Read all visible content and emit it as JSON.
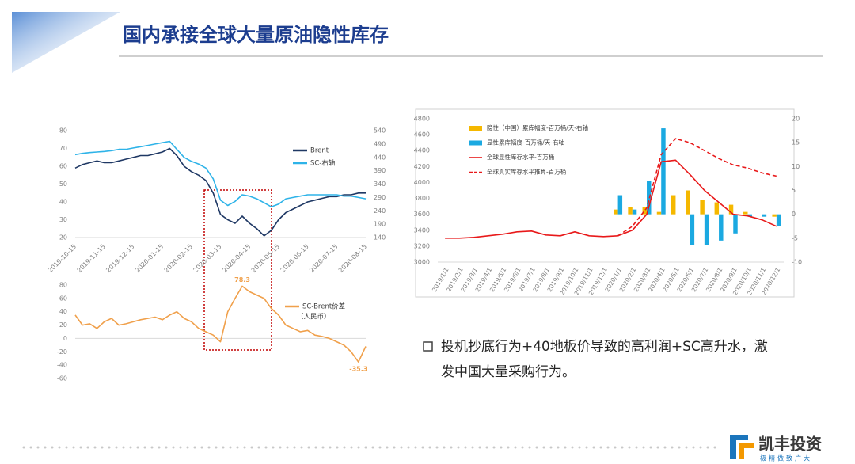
{
  "title": "国内承接全球大量原油隐性库存",
  "bullet": [
    "投机抄底行为+40地板价导致的高利润+SC高升水，激",
    "发中国大量采购行为。"
  ],
  "logo": {
    "name": "凯丰投资",
    "slogan": "极精做致广大"
  },
  "chart_data": [
    {
      "type": "line",
      "x": [
        "2019-10-15",
        null,
        null,
        null,
        "2019-11-15",
        null,
        null,
        null,
        "2019-12-15",
        null,
        null,
        null,
        "2020-01-15",
        null,
        null,
        null,
        "2020-02-15",
        null,
        null,
        null,
        "2020-03-15",
        null,
        null,
        null,
        "2020-04-15",
        null,
        null,
        null,
        "2020-05-15",
        null,
        null,
        null,
        "2020-06-15",
        null,
        null,
        null,
        "2020-07-15",
        null,
        null,
        null,
        "2020-08-15"
      ],
      "ylim": [
        20,
        80
      ],
      "yticks": [
        20,
        30,
        40,
        50,
        60,
        70,
        80
      ],
      "y2lim": [
        140,
        540
      ],
      "y2ticks": [
        140,
        190,
        240,
        290,
        340,
        390,
        440,
        490,
        540
      ],
      "series": [
        {
          "name": "Brent",
          "color": "#1f3864",
          "values": [
            59,
            61,
            62,
            63,
            62,
            62,
            63,
            64,
            65,
            66,
            66,
            67,
            68,
            70,
            66,
            60,
            57,
            55,
            52,
            45,
            33,
            30,
            28,
            32,
            28,
            25,
            21,
            24,
            30,
            34,
            36,
            38,
            40,
            41,
            42,
            43,
            43,
            44,
            44,
            45,
            45
          ]
        },
        {
          "name": "SC-右轴",
          "color": "#2eb3e8",
          "axis": "y2",
          "values": [
            450,
            455,
            458,
            460,
            462,
            465,
            470,
            470,
            475,
            480,
            485,
            490,
            495,
            500,
            470,
            440,
            425,
            415,
            400,
            360,
            280,
            260,
            275,
            300,
            295,
            285,
            270,
            255,
            265,
            285,
            290,
            295,
            300,
            300,
            300,
            300,
            300,
            295,
            295,
            290,
            285
          ]
        }
      ]
    },
    {
      "type": "line",
      "ylim": [
        -60,
        80
      ],
      "yticks": [
        -60,
        -40,
        -20,
        0,
        20,
        40,
        60,
        80
      ],
      "annotation": "（人民币）",
      "series": [
        {
          "name": "SC-Brent价差",
          "color": "#f0a04b",
          "values": [
            35,
            20,
            22,
            15,
            25,
            30,
            20,
            22,
            25,
            28,
            30,
            32,
            28,
            35,
            40,
            30,
            25,
            15,
            10,
            5,
            -5,
            40,
            60,
            78.3,
            70,
            65,
            60,
            45,
            35,
            20,
            15,
            10,
            12,
            5,
            3,
            0,
            -5,
            -10,
            -20,
            -35.3,
            -12
          ],
          "value_labels": [
            null,
            null,
            null,
            null,
            null,
            null,
            null,
            null,
            null,
            null,
            null,
            null,
            null,
            null,
            null,
            null,
            null,
            null,
            null,
            null,
            null,
            null,
            null,
            "78.3",
            null,
            null,
            null,
            null,
            null,
            null,
            null,
            null,
            null,
            null,
            null,
            null,
            null,
            null,
            null,
            "-35.3",
            null
          ]
        }
      ]
    },
    {
      "type": "combo",
      "categories": [
        "2019/1/1",
        "2019/2/1",
        "2019/3/1",
        "2019/4/1",
        "2019/5/1",
        "2019/6/1",
        "2019/7/1",
        "2019/8/1",
        "2019/9/1",
        "2019/10/1",
        "2019/11/1",
        "2019/12/1",
        "2020/1/1",
        "2020/2/1",
        "2020/3/1",
        "2020/4/1",
        "2020/5/1",
        "2020/6/1",
        "2020/7/1",
        "2020/8/1",
        "2020/9/1",
        "2020/10/1",
        "2020/11/1",
        "2020/12/1"
      ],
      "ylim": [
        3000,
        4800
      ],
      "yticks": [
        3000,
        3200,
        3400,
        3600,
        3800,
        4000,
        4200,
        4400,
        4600,
        4800
      ],
      "y2lim": [
        -10,
        20
      ],
      "y2ticks": [
        -10,
        -5,
        0,
        5,
        10,
        15,
        20
      ],
      "series": [
        {
          "name": "隐性（中国）累库幅度-百万桶/天-右轴",
          "type": "bar",
          "axis": "y2",
          "color": "#f5b800",
          "values": [
            null,
            null,
            null,
            null,
            null,
            null,
            null,
            null,
            null,
            null,
            null,
            null,
            1,
            1.5,
            1.5,
            0.5,
            4,
            5,
            3,
            2.5,
            2,
            0.5,
            0,
            -0.5
          ]
        },
        {
          "name": "显性累库幅度-百万桶/天-右轴",
          "type": "bar",
          "axis": "y2",
          "color": "#1ba9e1",
          "values": [
            null,
            null,
            null,
            null,
            null,
            null,
            null,
            null,
            null,
            null,
            null,
            null,
            4,
            1,
            7,
            18,
            0,
            -6.5,
            -6.5,
            -5.5,
            -4,
            -0.5,
            -0.5,
            -2.5
          ]
        },
        {
          "name": "全球显性库存水平-百万桶",
          "type": "line",
          "color": "#e8191a",
          "dash": false,
          "values": [
            3300,
            3300,
            3310,
            3330,
            3350,
            3380,
            3390,
            3340,
            3330,
            3380,
            3330,
            3320,
            3330,
            3400,
            3600,
            4260,
            4280,
            4100,
            3900,
            3750,
            3600,
            3580,
            3530,
            3450
          ]
        },
        {
          "name": "全球真实库存水平推算-百万桶",
          "type": "line",
          "color": "#e8191a",
          "dash": true,
          "values": [
            null,
            null,
            null,
            null,
            null,
            null,
            null,
            null,
            null,
            null,
            null,
            null,
            3330,
            3450,
            3680,
            4350,
            4550,
            4500,
            4400,
            4300,
            4220,
            4180,
            4120,
            4080
          ]
        }
      ]
    }
  ]
}
